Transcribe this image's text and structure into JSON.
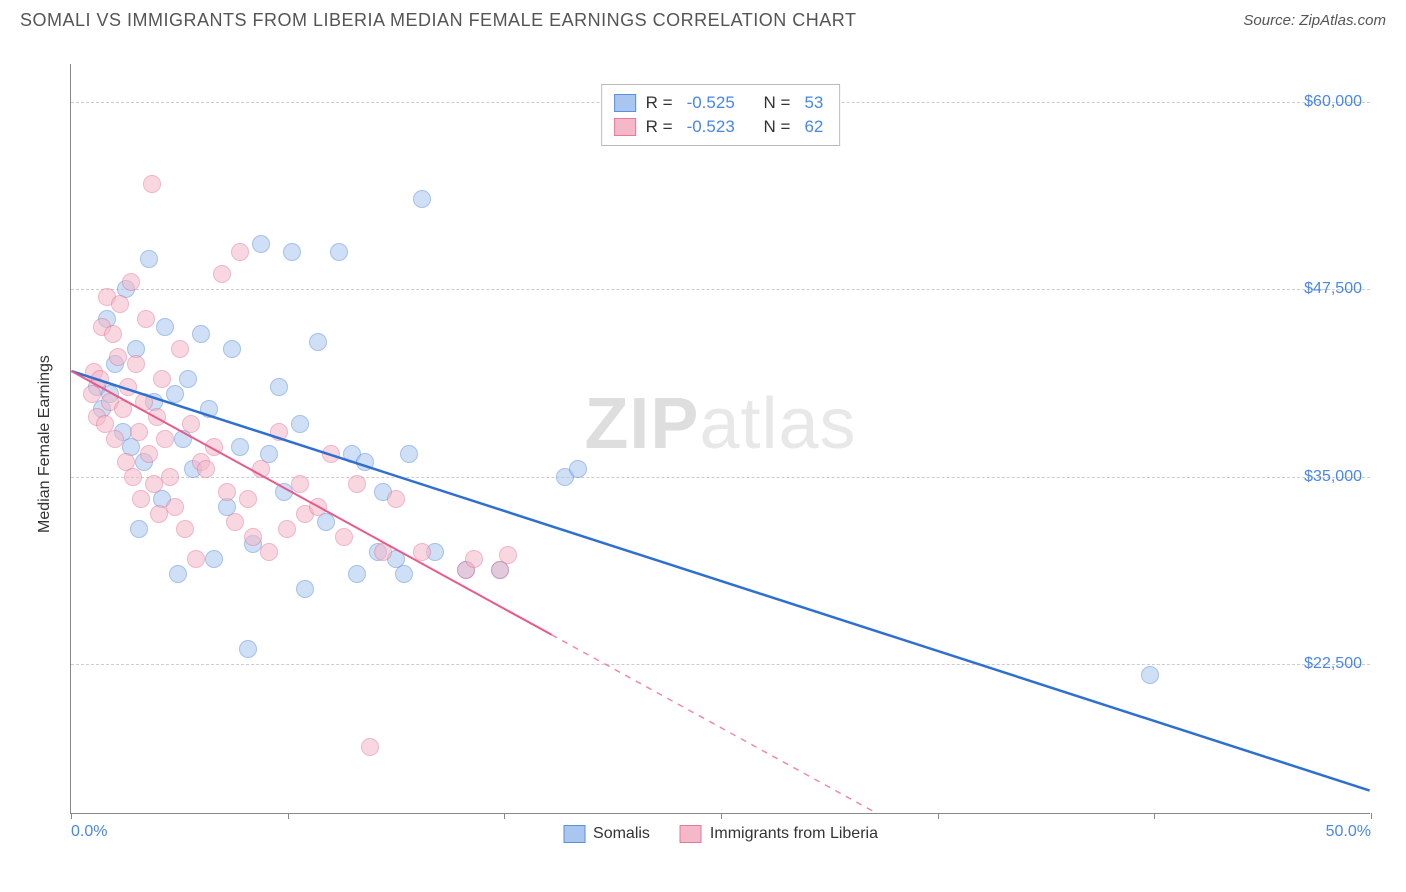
{
  "header": {
    "title": "SOMALI VS IMMIGRANTS FROM LIBERIA MEDIAN FEMALE EARNINGS CORRELATION CHART",
    "source_prefix": "Source: ",
    "source_name": "ZipAtlas.com"
  },
  "chart": {
    "type": "scatter",
    "ylabel": "Median Female Earnings",
    "watermark_bold": "ZIP",
    "watermark_rest": "atlas",
    "xlim": [
      0,
      50
    ],
    "ylim": [
      12500,
      62500
    ],
    "x_ticks": [
      0,
      8.33,
      16.67,
      25,
      33.33,
      41.67,
      50
    ],
    "x_tick_labels": {
      "0": "0.0%",
      "50": "50.0%"
    },
    "y_gridlines": [
      22500,
      35000,
      47500,
      60000
    ],
    "y_tick_labels": [
      "$22,500",
      "$35,000",
      "$47,500",
      "$60,000"
    ],
    "background_color": "#ffffff",
    "grid_color": "#cccccc",
    "axis_color": "#888888",
    "label_color_axis": "#4a86e8",
    "point_radius": 9,
    "point_opacity": 0.55,
    "series": [
      {
        "id": "somalis",
        "label": "Somalis",
        "fill": "#a8c6f0",
        "stroke": "#5b8fd6",
        "line_color": "#2f6fd0",
        "line_width": 2.5,
        "r_value": "-0.525",
        "n_value": "53",
        "regression": {
          "x1": 0,
          "y1": 42000,
          "x2": 50,
          "y2": 14000,
          "solid_to_x": 50
        },
        "points": [
          [
            1.0,
            41000
          ],
          [
            1.2,
            39500
          ],
          [
            1.4,
            45500
          ],
          [
            1.5,
            40500
          ],
          [
            1.7,
            42500
          ],
          [
            2.0,
            38000
          ],
          [
            2.1,
            47500
          ],
          [
            2.3,
            37000
          ],
          [
            2.5,
            43500
          ],
          [
            2.6,
            31500
          ],
          [
            2.8,
            36000
          ],
          [
            3.0,
            49500
          ],
          [
            3.2,
            40000
          ],
          [
            3.5,
            33500
          ],
          [
            3.6,
            45000
          ],
          [
            4.0,
            40500
          ],
          [
            4.1,
            28500
          ],
          [
            4.3,
            37500
          ],
          [
            4.5,
            41500
          ],
          [
            4.7,
            35500
          ],
          [
            5.0,
            44500
          ],
          [
            5.3,
            39500
          ],
          [
            5.5,
            29500
          ],
          [
            6.0,
            33000
          ],
          [
            6.2,
            43500
          ],
          [
            6.5,
            37000
          ],
          [
            6.8,
            23500
          ],
          [
            7.0,
            30500
          ],
          [
            7.3,
            50500
          ],
          [
            7.6,
            36500
          ],
          [
            8.0,
            41000
          ],
          [
            8.2,
            34000
          ],
          [
            8.5,
            50000
          ],
          [
            8.8,
            38500
          ],
          [
            9.0,
            27500
          ],
          [
            9.5,
            44000
          ],
          [
            9.8,
            32000
          ],
          [
            10.3,
            50000
          ],
          [
            10.8,
            36500
          ],
          [
            11.0,
            28500
          ],
          [
            11.3,
            36000
          ],
          [
            11.8,
            30000
          ],
          [
            12.0,
            34000
          ],
          [
            12.5,
            29500
          ],
          [
            12.8,
            28500
          ],
          [
            13.0,
            36500
          ],
          [
            14.0,
            30000
          ],
          [
            15.2,
            28800
          ],
          [
            16.5,
            28800
          ],
          [
            19.0,
            35000
          ],
          [
            19.5,
            35500
          ],
          [
            41.5,
            21800
          ],
          [
            13.5,
            53500
          ]
        ]
      },
      {
        "id": "liberia",
        "label": "Immigrants from Liberia",
        "fill": "#f5b8c8",
        "stroke": "#e27a9a",
        "line_color": "#e85a88",
        "line_width": 2,
        "r_value": "-0.523",
        "n_value": "62",
        "regression": {
          "x1": 0,
          "y1": 42000,
          "x2": 31,
          "y2": 12500,
          "solid_to_x": 18.5
        },
        "points": [
          [
            0.8,
            40500
          ],
          [
            0.9,
            42000
          ],
          [
            1.0,
            39000
          ],
          [
            1.1,
            41500
          ],
          [
            1.2,
            45000
          ],
          [
            1.3,
            38500
          ],
          [
            1.4,
            47000
          ],
          [
            1.5,
            40000
          ],
          [
            1.6,
            44500
          ],
          [
            1.7,
            37500
          ],
          [
            1.8,
            43000
          ],
          [
            1.9,
            46500
          ],
          [
            2.0,
            39500
          ],
          [
            2.1,
            36000
          ],
          [
            2.2,
            41000
          ],
          [
            2.3,
            48000
          ],
          [
            2.4,
            35000
          ],
          [
            2.5,
            42500
          ],
          [
            2.6,
            38000
          ],
          [
            2.7,
            33500
          ],
          [
            2.8,
            40000
          ],
          [
            2.9,
            45500
          ],
          [
            3.0,
            36500
          ],
          [
            3.1,
            54500
          ],
          [
            3.2,
            34500
          ],
          [
            3.3,
            39000
          ],
          [
            3.4,
            32500
          ],
          [
            3.5,
            41500
          ],
          [
            3.6,
            37500
          ],
          [
            3.8,
            35000
          ],
          [
            4.0,
            33000
          ],
          [
            4.2,
            43500
          ],
          [
            4.4,
            31500
          ],
          [
            4.6,
            38500
          ],
          [
            4.8,
            29500
          ],
          [
            5.0,
            36000
          ],
          [
            5.2,
            35500
          ],
          [
            5.5,
            37000
          ],
          [
            5.8,
            48500
          ],
          [
            6.0,
            34000
          ],
          [
            6.3,
            32000
          ],
          [
            6.5,
            50000
          ],
          [
            6.8,
            33500
          ],
          [
            7.0,
            31000
          ],
          [
            7.3,
            35500
          ],
          [
            7.6,
            30000
          ],
          [
            8.0,
            38000
          ],
          [
            8.3,
            31500
          ],
          [
            8.8,
            34500
          ],
          [
            9.0,
            32500
          ],
          [
            9.5,
            33000
          ],
          [
            10.0,
            36500
          ],
          [
            10.5,
            31000
          ],
          [
            11.0,
            34500
          ],
          [
            11.5,
            17000
          ],
          [
            12.0,
            30000
          ],
          [
            12.5,
            33500
          ],
          [
            13.5,
            30000
          ],
          [
            15.2,
            28800
          ],
          [
            16.5,
            28800
          ],
          [
            15.5,
            29500
          ],
          [
            16.8,
            29800
          ]
        ]
      }
    ]
  },
  "legend_stats": {
    "r_label": "R =",
    "n_label": "N ="
  }
}
